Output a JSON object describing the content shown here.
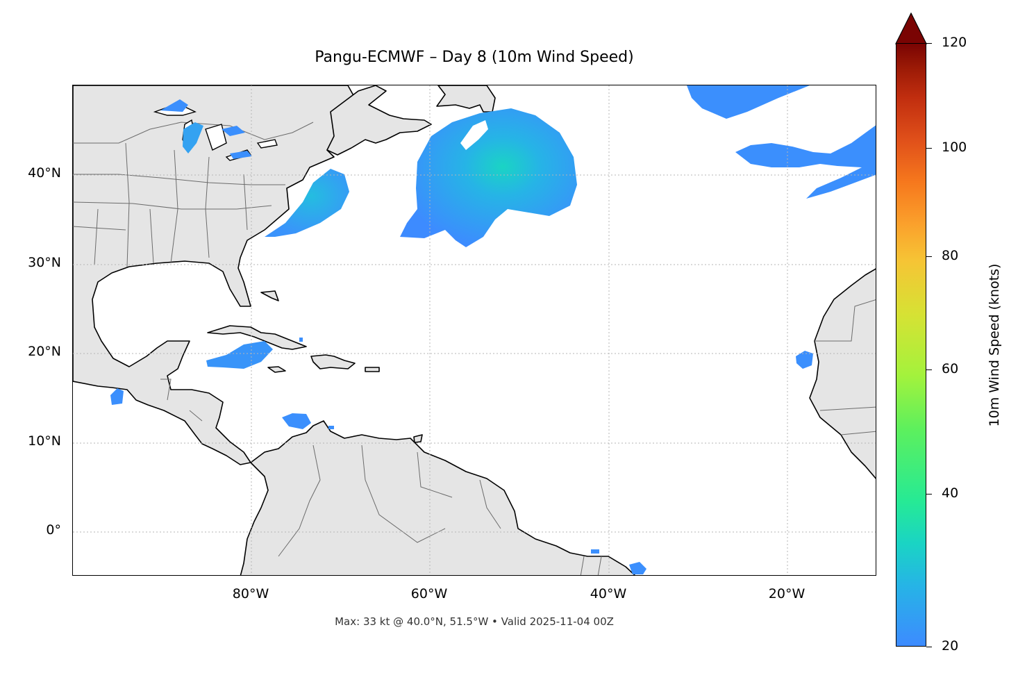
{
  "title": "Pangu-ECMWF – Day 8 (10m Wind Speed)",
  "footer": "Max: 33 kt @ 40.0°N, 51.5°W • Valid 2025-11-04 00Z",
  "map": {
    "projection": "PlateCarree",
    "lon_range": [
      -100,
      -10
    ],
    "lat_range": [
      -5,
      50
    ],
    "land_color": "#e5e5e5",
    "coast_color": "#000000",
    "border_color": "#666666",
    "gridlines": "dotted"
  },
  "axes": {
    "lat_ticks": [
      "40°N",
      "30°N",
      "20°N",
      "10°N",
      "0°"
    ],
    "lon_ticks": [
      "80°W",
      "60°W",
      "40°W",
      "20°W"
    ]
  },
  "wind_areas": [
    {
      "name": "North Atlantic main wind area",
      "approx_center_lat": 39.5,
      "approx_center_lon": -54
    },
    {
      "name": "Mid-Atlantic coast",
      "approx_center_lat": 37.5,
      "approx_center_lon": -73
    },
    {
      "name": "Great Lakes",
      "approx_center_lat": 45,
      "approx_center_lon": -84
    },
    {
      "name": "Northeast Atlantic",
      "approx_center_lat": 41,
      "approx_center_lon": -18
    },
    {
      "name": "Cuba / Caribbean",
      "approx_center_lat": 19.5,
      "approx_center_lon": -81
    },
    {
      "name": "Southern Caribbean",
      "approx_center_lat": 13,
      "approx_center_lon": -75
    },
    {
      "name": "Cape Verde",
      "approx_center_lat": 19.5,
      "approx_center_lon": -18
    }
  ],
  "colorbar": {
    "label": "10m Wind Speed (knots)",
    "min": 20,
    "max": 120,
    "ticks": [
      "20",
      "40",
      "60",
      "80",
      "100",
      "120"
    ],
    "extend": "max",
    "colormap": "turbo"
  },
  "colors": {
    "wind_low": "#3d8bff",
    "wind_mid": "#26b4e6",
    "wind_peak": "#1ad4c4",
    "cbar_top": "#7a0403"
  }
}
